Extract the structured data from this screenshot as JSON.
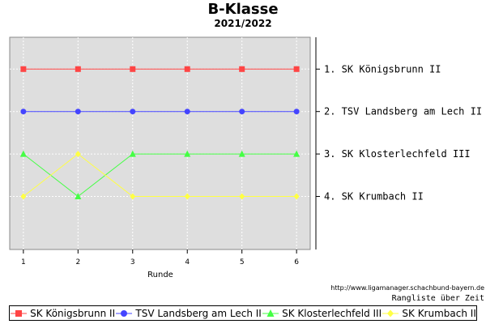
{
  "chart_data": {
    "type": "line",
    "title": "B-Klasse",
    "subtitle": "2021/2022",
    "xlabel": "Runde",
    "ylabel": "",
    "x": [
      1,
      2,
      3,
      4,
      5,
      6
    ],
    "ylim": [
      0.25,
      5.25
    ],
    "y_inverted": true,
    "grid": true,
    "legend_position": "bottom",
    "right_labels": [
      "1. SK Königsbrunn II",
      "2. TSV Landsberg am Lech II",
      "3. SK Klosterlechfeld III",
      "4. SK Krumbach II"
    ],
    "series": [
      {
        "name": "SK Königsbrunn II",
        "values": [
          1,
          1,
          1,
          1,
          1,
          1
        ],
        "color": "#ff4444",
        "marker": "square"
      },
      {
        "name": "TSV Landsberg am Lech II",
        "values": [
          2,
          2,
          2,
          2,
          2,
          2
        ],
        "color": "#4444ff",
        "marker": "circle"
      },
      {
        "name": "SK Klosterlechfeld III",
        "values": [
          3,
          4,
          3,
          3,
          3,
          3
        ],
        "color": "#44ff44",
        "marker": "triangle"
      },
      {
        "name": "SK Krumbach II",
        "values": [
          4,
          3,
          4,
          4,
          4,
          4
        ],
        "color": "#ffff44",
        "marker": "diamond"
      }
    ]
  },
  "footer": {
    "source": "http://www.ligamanager.schachbund-bayern.de",
    "caption": "Rangliste über Zeit"
  }
}
